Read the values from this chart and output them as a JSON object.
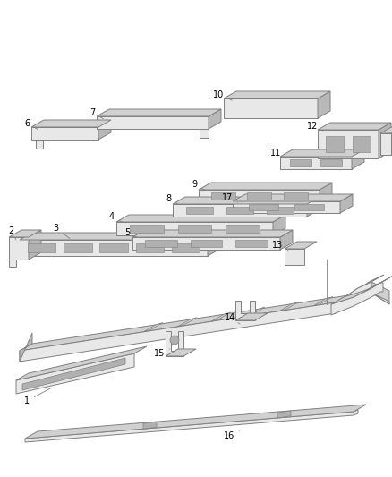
{
  "background": "#ffffff",
  "line_color": "#808080",
  "label_color": "#000000",
  "label_fontsize": 7,
  "face_light": "#e8e8e8",
  "face_mid": "#d0d0d0",
  "face_dark": "#b8b8b8",
  "face_slot": "#b0b0b0",
  "figsize": [
    4.38,
    5.33
  ],
  "dpi": 100
}
